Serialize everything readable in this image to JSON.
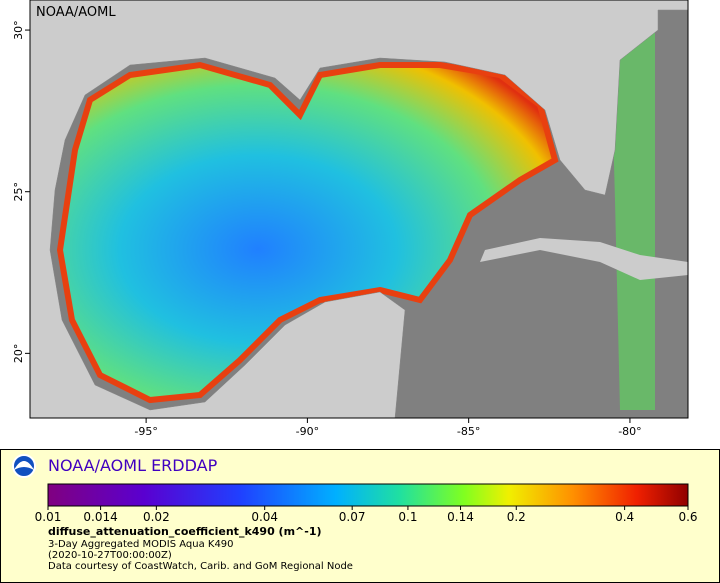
{
  "map": {
    "label": "NOAA/AOML",
    "xlim": [
      -98.6,
      -78.2
    ],
    "ylim": [
      18.0,
      30.93
    ],
    "xticks": [
      {
        "value": -95,
        "label": "-95°"
      },
      {
        "value": -90,
        "label": "-90°"
      },
      {
        "value": -85,
        "label": "-85°"
      },
      {
        "value": -80,
        "label": "-80°"
      }
    ],
    "yticks": [
      {
        "value": 20,
        "label": "20°"
      },
      {
        "value": 25,
        "label": "25°"
      },
      {
        "value": 30,
        "label": "30°"
      }
    ]
  },
  "legend": {
    "title": "NOAA/AOML ERDDAP",
    "colorbar": {
      "scale": "log",
      "lim": [
        0.01,
        0.6
      ],
      "ticks": [
        0.01,
        0.014,
        0.02,
        0.04,
        0.07,
        0.1,
        0.14,
        0.2,
        0.4,
        0.6
      ]
    },
    "variable": "diffuse_attenuation_coefficient_k490 (m^-1)",
    "lines": [
      "3-Day Aggregated MODIS Aqua K490",
      "(2020-10-27T00:00:00Z)",
      "Data courtesy of CoastWatch, Carib. and GoM Regional Node"
    ]
  }
}
